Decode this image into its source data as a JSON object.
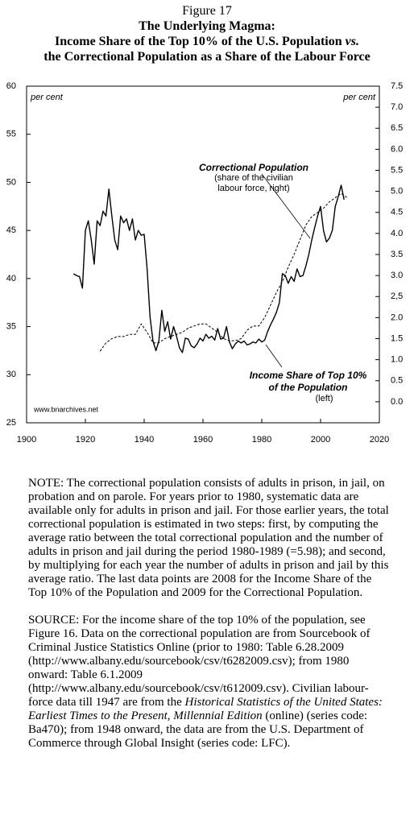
{
  "chart_data": {
    "type": "line",
    "figure": "Figure 17",
    "heading": "The Underlying Magma:",
    "title_line1": "Income Share of the Top 10% of the U.S. Population",
    "title_emphasis": "vs.",
    "title_line2": "the Correctional Population as a Share of the Labour Force",
    "ylabel": "per cent",
    "y2label": "per cent",
    "credit": "www.bnarchives.net",
    "xlim": [
      1900,
      2020
    ],
    "xticks": [
      1900,
      1920,
      1940,
      1960,
      1980,
      2000,
      2020
    ],
    "ylim": [
      25,
      60
    ],
    "yticks": [
      25,
      30,
      35,
      40,
      45,
      50,
      55,
      60
    ],
    "y2lim": [
      -0.5,
      7.5
    ],
    "y2ticks": [
      {
        "value": 0,
        "label": "0.0"
      },
      0.5,
      {
        "value": 1,
        "label": "1.0"
      },
      1.5,
      {
        "value": 2,
        "label": "2.0"
      },
      {
        "value": 2.5,
        "label": "2,5"
      },
      {
        "value": 3,
        "label": "3.0"
      },
      3.5,
      {
        "value": 4,
        "label": "4.0"
      },
      4.5,
      {
        "value": 5,
        "label": "5.0"
      },
      5.5,
      {
        "value": 6,
        "label": "6.0"
      },
      6.5,
      {
        "value": 7,
        "label": "7.0"
      },
      7.5
    ],
    "series": [
      {
        "name": "Income Share of Top 10% of the Population",
        "note": "(left)",
        "color": "#000000",
        "dashed": false,
        "axis": "y",
        "x": [
          1916,
          1917,
          1918,
          1919,
          1920,
          1921,
          1922,
          1923,
          1924,
          1925,
          1926,
          1927,
          1928,
          1929,
          1930,
          1931,
          1932,
          1933,
          1934,
          1935,
          1936,
          1937,
          1938,
          1939,
          1940,
          1941,
          1942,
          1943,
          1944,
          1945,
          1946,
          1947,
          1948,
          1949,
          1950,
          1951,
          1952,
          1953,
          1954,
          1955,
          1956,
          1957,
          1958,
          1959,
          1960,
          1961,
          1962,
          1963,
          1964,
          1965,
          1966,
          1967,
          1968,
          1969,
          1970,
          1971,
          1972,
          1973,
          1974,
          1975,
          1976,
          1977,
          1978,
          1979,
          1980,
          1981,
          1982,
          1983,
          1984,
          1985,
          1986,
          1987,
          1988,
          1989,
          1990,
          1991,
          1992,
          1993,
          1994,
          1995,
          1996,
          1997,
          1998,
          1999,
          2000,
          2001,
          2002,
          2003,
          2004,
          2005,
          2006,
          2007,
          2008
        ],
        "values": [
          40.5,
          40.3,
          40.2,
          39.0,
          45.0,
          46.0,
          44.0,
          41.5,
          46.0,
          45.5,
          47.0,
          46.5,
          49.3,
          46.5,
          44.0,
          43.0,
          46.5,
          45.8,
          46.2,
          45.0,
          46.2,
          44.0,
          45.0,
          44.5,
          44.6,
          41.0,
          36.0,
          33.5,
          32.5,
          33.5,
          36.7,
          34.5,
          35.5,
          33.7,
          35.0,
          34.0,
          32.8,
          32.3,
          33.8,
          33.7,
          33.0,
          32.8,
          33.2,
          33.8,
          33.5,
          34.2,
          33.8,
          34.0,
          33.6,
          34.8,
          33.7,
          33.8,
          35.0,
          33.4,
          32.7,
          33.2,
          33.5,
          33.3,
          33.5,
          33.1,
          33.2,
          33.4,
          33.3,
          33.7,
          33.4,
          33.6,
          34.5,
          35.2,
          35.8,
          36.5,
          37.5,
          40.5,
          40.3,
          39.5,
          40.2,
          39.7,
          41.0,
          40.2,
          40.3,
          41.3,
          42.5,
          44.0,
          45.3,
          46.5,
          47.5,
          45.0,
          43.8,
          44.2,
          45.0,
          47.5,
          48.5,
          49.7,
          48.2
        ]
      },
      {
        "name": "Correctional Population",
        "note": "(share of the civilian labour force, right)",
        "color": "#000000",
        "dashed": true,
        "axis": "y2",
        "x": [
          1925,
          1927,
          1929,
          1931,
          1933,
          1935,
          1937,
          1939,
          1941,
          1943,
          1945,
          1947,
          1949,
          1951,
          1953,
          1955,
          1957,
          1959,
          1961,
          1963,
          1965,
          1967,
          1969,
          1971,
          1973,
          1975,
          1977,
          1979,
          1981,
          1983,
          1985,
          1987,
          1989,
          1991,
          1993,
          1995,
          1997,
          1999,
          2001,
          2003,
          2005,
          2007,
          2009
        ],
        "values": [
          1.2,
          1.4,
          1.5,
          1.55,
          1.55,
          1.6,
          1.6,
          1.85,
          1.65,
          1.4,
          1.4,
          1.5,
          1.55,
          1.6,
          1.65,
          1.75,
          1.8,
          1.85,
          1.85,
          1.75,
          1.65,
          1.5,
          1.45,
          1.45,
          1.5,
          1.7,
          1.8,
          1.8,
          2.0,
          2.3,
          2.6,
          2.85,
          3.2,
          3.5,
          3.85,
          4.2,
          4.4,
          4.5,
          4.6,
          4.75,
          4.85,
          4.95,
          4.85
        ]
      }
    ]
  },
  "notes": {
    "note": "NOTE: The correctional population consists of adults in prison, in jail, on probation and on parole. For years prior to 1980, systematic data are available only for adults in prison and jail. For those earlier years, the total correctional population is estimated in two steps: first, by computing the average ratio between the total correctional population and the number of adults in prison and jail during the period 1980-1989 (=5.98); and second, by multiplying for each year the number of adults in prison and jail by this average ratio. The last data points are 2008 for the Income Share of the Top 10% of the Population and 2009 for the Correctional Population.",
    "source_part1": "SOURCE: For the income share of the top 10% of the population, see Figure 16. Data on the correctional population are from Sourcebook of Criminal Justice Statistics Online (prior to 1980: Table 6.28.2009 (http://www.albany.edu/sourcebook/csv/t6282009.csv); from 1980 onward: Table 6.1.2009 (http://www.albany.edu/sourcebook/csv/t612009.csv). Civilian labour-force data till 1947 are from the",
    "source_italic": "Historical Statistics of the United States: Earliest Times to the Present, Millennial Edition",
    "source_part2": "(online) (series code: Ba470); from 1948 onward, the data are from the U.S. Department of Commerce through Global Insight (series code: LFC)."
  }
}
